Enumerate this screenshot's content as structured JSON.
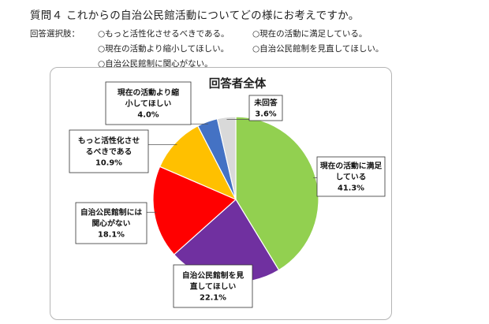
{
  "question": {
    "title": "質問４ これからの自治公民館活動についてどの様にお考えですか。"
  },
  "options": {
    "prefix": "回答選択肢：",
    "items": [
      "○もっと活性化させるべきである。",
      "○現在の活動に満足している。",
      "○現在の活動より縮小してほしい。",
      "○自治公民館制を見直してほしい。",
      "○自治公民館制に関心がない。"
    ]
  },
  "chart_data": {
    "type": "pie",
    "title": "回答者全体",
    "start": "12 o'clock",
    "direction": "clockwise",
    "slices": [
      {
        "name": "現在の活動に満足している",
        "label_lines": [
          "現在の活動に満足",
          "している"
        ],
        "value": 41.3,
        "pct_text": "41.3%",
        "color": "#92d050"
      },
      {
        "name": "自治公民館制を見直してほしい",
        "label_lines": [
          "自治公民館制を見",
          "直してほしい"
        ],
        "value": 22.1,
        "pct_text": "22.1%",
        "color": "#7030a0"
      },
      {
        "name": "自治公民館制には関心がない",
        "label_lines": [
          "自治公民館制には",
          "関心がない"
        ],
        "value": 18.1,
        "pct_text": "18.1%",
        "color": "#ff0000"
      },
      {
        "name": "もっと活性化させるべきである",
        "label_lines": [
          "もっと活性化させ",
          "るべきである"
        ],
        "value": 10.9,
        "pct_text": "10.9%",
        "color": "#ffc000"
      },
      {
        "name": "現在の活動より縮小してほしい",
        "label_lines": [
          "現在の活動より縮",
          "小してほしい"
        ],
        "value": 4.0,
        "pct_text": "4.0%",
        "color": "#4472c4"
      },
      {
        "name": "未回答",
        "label_lines": [
          "未回答"
        ],
        "value": 3.6,
        "pct_text": "3.6%",
        "color": "#d9d9d9"
      }
    ]
  }
}
